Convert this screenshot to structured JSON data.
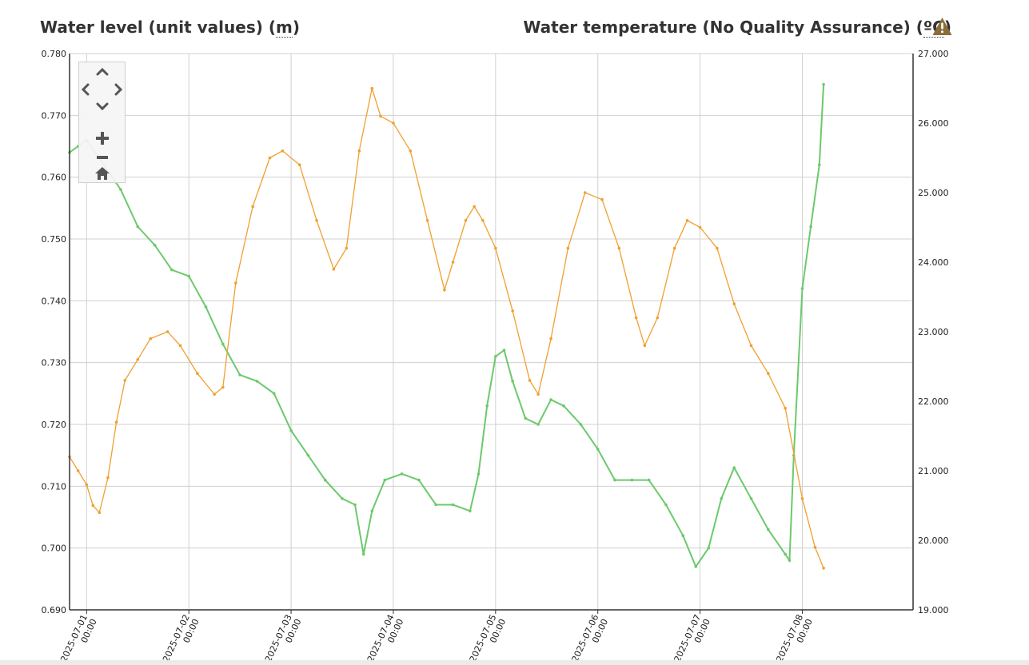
{
  "header": {
    "left_title": "Water level (unit values) (",
    "left_unit": "m",
    "left_close": ")",
    "right_title": "Water temperature (No Quality Assurance) (",
    "right_unit": "ºC",
    "right_close": ")",
    "warning_icon": "warning-triangle-icon"
  },
  "colors": {
    "water_level": "#6cc96c",
    "water_temperature": "#f0a030",
    "grid": "#d0d0d0",
    "axis": "#333333",
    "warning": "#8b6d3a"
  },
  "nav_controls": {
    "icons": [
      "chevron-up-icon",
      "chevron-left-icon",
      "chevron-right-icon",
      "chevron-down-icon",
      "zoom-in-icon",
      "zoom-out-icon",
      "home-icon"
    ]
  },
  "chart_data": {
    "type": "line",
    "x_ticks": [
      {
        "date": "2025-07-01",
        "time": "00:00"
      },
      {
        "date": "2025-07-02",
        "time": "00:00"
      },
      {
        "date": "2025-07-03",
        "time": "00:00"
      },
      {
        "date": "2025-07-04",
        "time": "00:00"
      },
      {
        "date": "2025-07-05",
        "time": "00:00"
      },
      {
        "date": "2025-07-06",
        "time": "00:00"
      },
      {
        "date": "2025-07-07",
        "time": "00:00"
      },
      {
        "date": "2025-07-08",
        "time": "00:00"
      }
    ],
    "xlim": [
      "2025-06-30 20:00",
      "2025-07-09 02:00"
    ],
    "y_left": {
      "ylim": [
        0.69,
        0.78
      ],
      "ticks": [
        "0.690",
        "0.700",
        "0.710",
        "0.720",
        "0.730",
        "0.740",
        "0.750",
        "0.760",
        "0.770",
        "0.780"
      ]
    },
    "y_right": {
      "ylim": [
        19.0,
        27.0
      ],
      "ticks": [
        "19.000",
        "20.000",
        "21.000",
        "22.000",
        "23.000",
        "24.000",
        "25.000",
        "26.000",
        "27.000"
      ]
    },
    "grid": true,
    "series": [
      {
        "key": "water_level",
        "axis": "left",
        "points": [
          [
            "2025-06-30 20:00",
            0.764
          ],
          [
            "2025-06-30 22:00",
            0.765
          ],
          [
            "2025-07-01 00:00",
            0.766
          ],
          [
            "2025-07-01 04:00",
            0.762
          ],
          [
            "2025-07-01 08:00",
            0.758
          ],
          [
            "2025-07-01 12:00",
            0.752
          ],
          [
            "2025-07-01 16:00",
            0.749
          ],
          [
            "2025-07-01 20:00",
            0.745
          ],
          [
            "2025-07-02 00:00",
            0.744
          ],
          [
            "2025-07-02 04:00",
            0.739
          ],
          [
            "2025-07-02 08:00",
            0.733
          ],
          [
            "2025-07-02 12:00",
            0.728
          ],
          [
            "2025-07-02 16:00",
            0.727
          ],
          [
            "2025-07-02 20:00",
            0.725
          ],
          [
            "2025-07-03 00:00",
            0.719
          ],
          [
            "2025-07-03 04:00",
            0.715
          ],
          [
            "2025-07-03 08:00",
            0.711
          ],
          [
            "2025-07-03 12:00",
            0.708
          ],
          [
            "2025-07-03 15:00",
            0.707
          ],
          [
            "2025-07-03 17:00",
            0.699
          ],
          [
            "2025-07-03 19:00",
            0.706
          ],
          [
            "2025-07-03 22:00",
            0.711
          ],
          [
            "2025-07-04 02:00",
            0.712
          ],
          [
            "2025-07-04 06:00",
            0.711
          ],
          [
            "2025-07-04 10:00",
            0.707
          ],
          [
            "2025-07-04 14:00",
            0.707
          ],
          [
            "2025-07-04 18:00",
            0.706
          ],
          [
            "2025-07-04 20:00",
            0.712
          ],
          [
            "2025-07-04 22:00",
            0.723
          ],
          [
            "2025-07-05 00:00",
            0.731
          ],
          [
            "2025-07-05 02:00",
            0.732
          ],
          [
            "2025-07-05 04:00",
            0.727
          ],
          [
            "2025-07-05 07:00",
            0.721
          ],
          [
            "2025-07-05 10:00",
            0.72
          ],
          [
            "2025-07-05 13:00",
            0.724
          ],
          [
            "2025-07-05 16:00",
            0.723
          ],
          [
            "2025-07-05 20:00",
            0.72
          ],
          [
            "2025-07-06 00:00",
            0.716
          ],
          [
            "2025-07-06 04:00",
            0.711
          ],
          [
            "2025-07-06 08:00",
            0.711
          ],
          [
            "2025-07-06 12:00",
            0.711
          ],
          [
            "2025-07-06 16:00",
            0.707
          ],
          [
            "2025-07-06 20:00",
            0.702
          ],
          [
            "2025-07-06 23:00",
            0.697
          ],
          [
            "2025-07-07 02:00",
            0.7
          ],
          [
            "2025-07-07 05:00",
            0.708
          ],
          [
            "2025-07-07 08:00",
            0.713
          ],
          [
            "2025-07-07 12:00",
            0.708
          ],
          [
            "2025-07-07 16:00",
            0.703
          ],
          [
            "2025-07-07 20:00",
            0.699
          ],
          [
            "2025-07-07 21:00",
            0.698
          ],
          [
            "2025-07-07 22:00",
            0.715
          ],
          [
            "2025-07-08 00:00",
            0.742
          ],
          [
            "2025-07-08 02:00",
            0.752
          ],
          [
            "2025-07-08 04:00",
            0.762
          ],
          [
            "2025-07-08 05:00",
            0.775
          ]
        ]
      },
      {
        "key": "water_temperature",
        "axis": "right",
        "points": [
          [
            "2025-06-30 20:00",
            21.2
          ],
          [
            "2025-06-30 22:00",
            21.0
          ],
          [
            "2025-07-01 00:00",
            20.8
          ],
          [
            "2025-07-01 01:30",
            20.5
          ],
          [
            "2025-07-01 03:00",
            20.4
          ],
          [
            "2025-07-01 05:00",
            20.9
          ],
          [
            "2025-07-01 07:00",
            21.7
          ],
          [
            "2025-07-01 09:00",
            22.3
          ],
          [
            "2025-07-01 12:00",
            22.6
          ],
          [
            "2025-07-01 15:00",
            22.9
          ],
          [
            "2025-07-01 19:00",
            23.0
          ],
          [
            "2025-07-01 22:00",
            22.8
          ],
          [
            "2025-07-02 02:00",
            22.4
          ],
          [
            "2025-07-02 06:00",
            22.1
          ],
          [
            "2025-07-02 08:00",
            22.2
          ],
          [
            "2025-07-02 11:00",
            23.7
          ],
          [
            "2025-07-02 15:00",
            24.8
          ],
          [
            "2025-07-02 19:00",
            25.5
          ],
          [
            "2025-07-02 22:00",
            25.6
          ],
          [
            "2025-07-03 02:00",
            25.4
          ],
          [
            "2025-07-03 06:00",
            24.6
          ],
          [
            "2025-07-03 10:00",
            23.9
          ],
          [
            "2025-07-03 13:00",
            24.2
          ],
          [
            "2025-07-03 16:00",
            25.6
          ],
          [
            "2025-07-03 19:00",
            26.5
          ],
          [
            "2025-07-03 21:00",
            26.1
          ],
          [
            "2025-07-04 00:00",
            26.0
          ],
          [
            "2025-07-04 04:00",
            25.6
          ],
          [
            "2025-07-04 08:00",
            24.6
          ],
          [
            "2025-07-04 12:00",
            23.6
          ],
          [
            "2025-07-04 14:00",
            24.0
          ],
          [
            "2025-07-04 17:00",
            24.6
          ],
          [
            "2025-07-04 19:00",
            24.8
          ],
          [
            "2025-07-04 21:00",
            24.6
          ],
          [
            "2025-07-05 00:00",
            24.2
          ],
          [
            "2025-07-05 04:00",
            23.3
          ],
          [
            "2025-07-05 08:00",
            22.3
          ],
          [
            "2025-07-05 10:00",
            22.1
          ],
          [
            "2025-07-05 13:00",
            22.9
          ],
          [
            "2025-07-05 17:00",
            24.2
          ],
          [
            "2025-07-05 21:00",
            25.0
          ],
          [
            "2025-07-06 01:00",
            24.9
          ],
          [
            "2025-07-06 05:00",
            24.2
          ],
          [
            "2025-07-06 09:00",
            23.2
          ],
          [
            "2025-07-06 11:00",
            22.8
          ],
          [
            "2025-07-06 14:00",
            23.2
          ],
          [
            "2025-07-06 18:00",
            24.2
          ],
          [
            "2025-07-06 21:00",
            24.6
          ],
          [
            "2025-07-07 00:00",
            24.5
          ],
          [
            "2025-07-07 04:00",
            24.2
          ],
          [
            "2025-07-07 08:00",
            23.4
          ],
          [
            "2025-07-07 12:00",
            22.8
          ],
          [
            "2025-07-07 16:00",
            22.4
          ],
          [
            "2025-07-07 20:00",
            21.9
          ],
          [
            "2025-07-08 00:00",
            20.6
          ],
          [
            "2025-07-08 03:00",
            19.9
          ],
          [
            "2025-07-08 05:00",
            19.6
          ]
        ]
      }
    ]
  }
}
